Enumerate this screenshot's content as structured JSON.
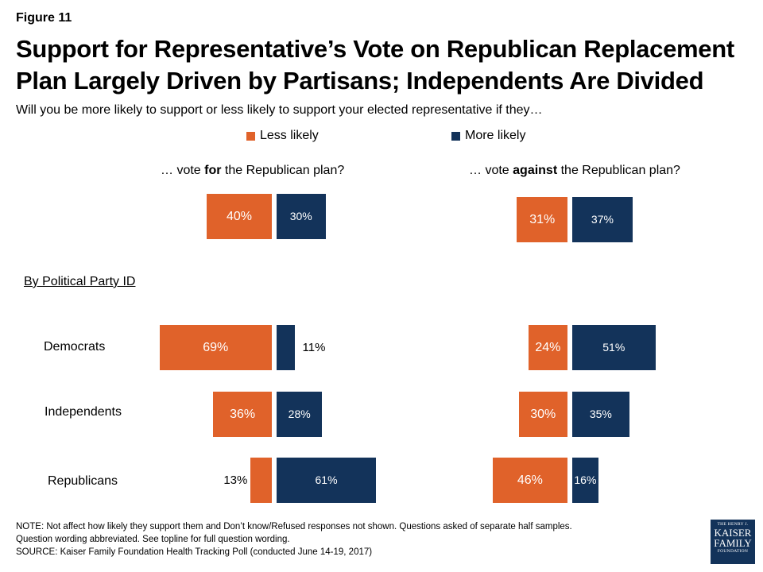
{
  "figure_label": "Figure 11",
  "title": "Support for Representative’s Vote on Republican Replacement Plan Largely Driven by Partisans; Independents Are Divided",
  "subtitle": "Will you be more likely to support or less likely to support your elected representative if they…",
  "legend": [
    {
      "label": "Less likely",
      "color": "#e0622a"
    },
    {
      "label": "More likely",
      "color": "#13335a"
    }
  ],
  "panels": [
    {
      "prefix": "… vote ",
      "emphasis": "for",
      "suffix": " the Republican plan?"
    },
    {
      "prefix": "… vote ",
      "emphasis": "against",
      "suffix": " the Republican plan?"
    }
  ],
  "party_heading": "By Political Party ID",
  "row_labels": [
    "Democrats",
    "Independents",
    "Republicans"
  ],
  "chart_data": {
    "type": "bar",
    "orientation": "horizontal-diverging",
    "panels": [
      "… vote for the Republican plan?",
      "… vote against the Republican plan?"
    ],
    "categories": [
      "",
      "Democrats",
      "Independents",
      "Republicans"
    ],
    "series": [
      {
        "name": "Less likely",
        "color": "#e0622a"
      },
      {
        "name": "More likely",
        "color": "#13335a"
      }
    ],
    "values": {
      "for": {
        "less": [
          40,
          69,
          36,
          13
        ],
        "more": [
          30,
          11,
          28,
          61
        ]
      },
      "against": {
        "less": [
          31,
          24,
          30,
          46
        ],
        "more": [
          37,
          51,
          35,
          16
        ]
      }
    },
    "value_suffix": "%"
  },
  "note": {
    "line1": "NOTE: Not affect how likely they support them and Don’t know/Refused responses not shown. Questions asked of separate half samples.",
    "line2": "Question wording abbreviated. See topline for full question wording.",
    "line3": "SOURCE: Kaiser Family Foundation Health Tracking Poll (conducted June 14-19, 2017)"
  },
  "logo": {
    "line1": "THE HENRY J.",
    "line2a": "KAISER",
    "line2b": "FAMILY",
    "line3": "FOUNDATION"
  }
}
